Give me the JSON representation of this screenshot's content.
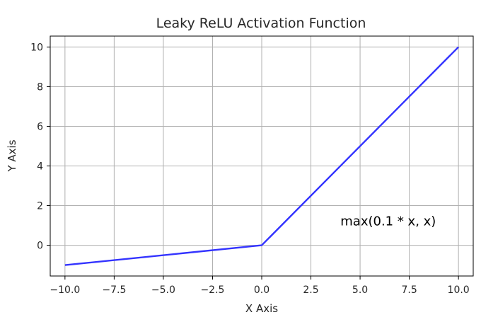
{
  "chart_data": {
    "type": "line",
    "title": "Leaky ReLU Activation Function",
    "xlabel": "X Axis",
    "ylabel": "Y Axis",
    "xlim": [
      -10.75,
      10.75
    ],
    "ylim": [
      -1.55,
      10.55
    ],
    "x_ticks": [
      -10.0,
      -7.5,
      -5.0,
      -2.5,
      0.0,
      2.5,
      5.0,
      7.5,
      10.0
    ],
    "x_tick_labels": [
      "−10.0",
      "−7.5",
      "−5.0",
      "−2.5",
      "0.0",
      "2.5",
      "5.0",
      "7.5",
      "10.0"
    ],
    "y_ticks": [
      0,
      2,
      4,
      6,
      8,
      10
    ],
    "y_tick_labels": [
      "0",
      "2",
      "4",
      "6",
      "8",
      "10"
    ],
    "grid": true,
    "series": [
      {
        "x": [
          -10,
          0,
          10
        ],
        "y": [
          -1,
          0,
          10
        ],
        "color": "#3333ff"
      }
    ],
    "annotation": {
      "text": "max(0.1 * x, x)",
      "x": 4.0,
      "y": 1.0
    }
  }
}
